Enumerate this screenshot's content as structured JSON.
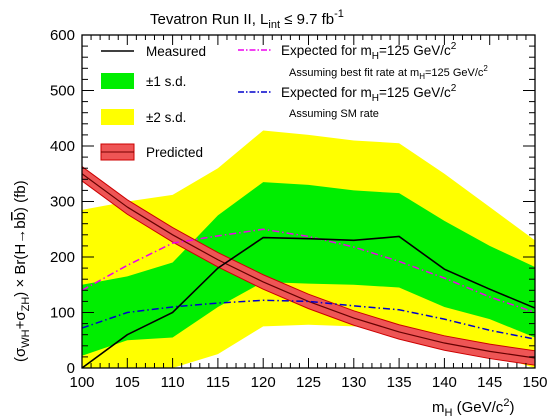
{
  "chart_data": {
    "type": "line",
    "title": "Tevatron Run II,   L",
    "title_sub": "int",
    "title_tail": " ≤ 9.7 fb",
    "title_sup": "-1",
    "xlabel_main": "m",
    "xlabel_sub": "H",
    "xlabel_tail": " (GeV/c",
    "xlabel_sup": "2",
    "xlabel_end": ")",
    "ylabel": "(σ_WH+σ_ZH) × Br(H→bb̄) (fb)",
    "xlim": [
      100,
      150
    ],
    "ylim": [
      0,
      600
    ],
    "x_ticks": [
      "100",
      "105",
      "110",
      "115",
      "120",
      "125",
      "130",
      "135",
      "140",
      "145",
      "150"
    ],
    "y_ticks": [
      "0",
      "100",
      "200",
      "300",
      "400",
      "500",
      "600"
    ],
    "grid": false,
    "legend_position": "top",
    "x": [
      100,
      105,
      110,
      115,
      120,
      125,
      130,
      135,
      140,
      145,
      150
    ],
    "series": [
      {
        "name": "Measured",
        "style": "solid",
        "color": "#000000",
        "values": [
          0,
          60,
          100,
          180,
          235,
          233,
          230,
          237,
          178,
          142,
          108
        ]
      },
      {
        "name": "±1 s.d.",
        "style": "band",
        "color": "#00ee00",
        "lower": [
          22,
          50,
          55,
          110,
          155,
          152,
          150,
          145,
          110,
          88,
          55
        ],
        "upper": [
          150,
          165,
          190,
          275,
          335,
          330,
          320,
          315,
          265,
          220,
          182
        ]
      },
      {
        "name": "±2 s.d.",
        "style": "band",
        "color": "#ffff00",
        "lower": [
          0,
          0,
          0,
          25,
          75,
          78,
          75,
          70,
          40,
          25,
          0
        ],
        "upper": [
          285,
          300,
          312,
          360,
          428,
          420,
          410,
          405,
          350,
          290,
          230
        ]
      },
      {
        "name": "Predicted",
        "style": "band-line",
        "color": "#ee4444",
        "values": [
          350,
          290,
          240,
          195,
          155,
          120,
          90,
          65,
          45,
          30,
          18
        ],
        "half_width": 13
      },
      {
        "name": "Expected for m_H=125 GeV/c²",
        "note": "Assuming best fit rate at m_H=125 GeV/c²",
        "style": "dashdot",
        "color": "#ee00ee",
        "values": [
          140,
          185,
          225,
          238,
          250,
          237,
          218,
          192,
          162,
          128,
          100
        ]
      },
      {
        "name": "Expected for m_H=125 GeV/c²",
        "note": "Assuming SM rate",
        "style": "dashdot",
        "color": "#0000cc",
        "values": [
          72,
          100,
          110,
          117,
          122,
          120,
          112,
          105,
          88,
          68,
          52
        ]
      }
    ]
  },
  "legend": {
    "measured": "Measured",
    "one_sd": "±1 s.d.",
    "two_sd": "±2 s.d.",
    "predicted": "Predicted",
    "exp1_main": "Expected for m",
    "exp1_sub": "H",
    "exp1_tail": "=125 GeV/c",
    "exp1_sup": "2",
    "exp1_note_main": "Assuming best fit rate at m",
    "exp1_note_sub": "H",
    "exp1_note_tail": "=125 GeV/c",
    "exp1_note_sup": "2",
    "exp2_main": "Expected for m",
    "exp2_sub": "H",
    "exp2_tail": "=125 GeV/c",
    "exp2_sup": "2",
    "exp2_note": "Assuming SM rate"
  },
  "ylabel_parts": {
    "open": "(σ",
    "sub1": "WH",
    "plus": "+σ",
    "sub2": "ZH",
    "tail": ") × Br(H→b",
    "bbar": "b",
    "end": ") (fb)"
  }
}
